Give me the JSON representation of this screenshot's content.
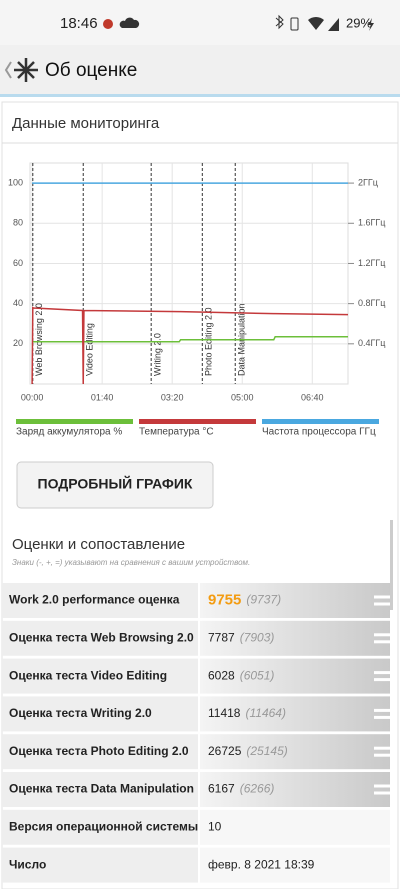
{
  "status_bar": {
    "time": "18:46",
    "battery": "29%"
  },
  "header": {
    "title": "Об оценке"
  },
  "monitoring": {
    "title": "Данные мониторинга"
  },
  "chart_data": {
    "type": "line",
    "x": [
      0,
      1,
      2,
      72,
      73,
      74,
      210,
      212,
      345,
      347,
      451
    ],
    "xlim": [
      -3,
      451
    ],
    "xticks": [
      {
        "value": 0,
        "label": "00:00"
      },
      {
        "value": 100,
        "label": "01:40"
      },
      {
        "value": 200,
        "label": "03:20"
      },
      {
        "value": 300,
        "label": "05:00"
      },
      {
        "value": 400,
        "label": "06:40"
      }
    ],
    "ylim": [
      0,
      110
    ],
    "yticks": [
      20,
      40,
      60,
      80,
      100
    ],
    "y2lim": [
      0,
      2.2
    ],
    "y2ticks": [
      {
        "value": 0.4,
        "label": "0.4ГГц"
      },
      {
        "value": 0.8,
        "label": "0.8ГГц"
      },
      {
        "value": 1.2,
        "label": "1.2ГГц"
      },
      {
        "value": 1.6,
        "label": "1.6ГГц"
      },
      {
        "value": 2,
        "label": "2ГГц"
      }
    ],
    "grid": true,
    "series": [
      {
        "name": "Заряд аккумулятора %",
        "color": "#6cbf3a",
        "values": [
          21,
          21,
          21,
          21,
          21,
          21,
          21,
          22,
          22,
          23.5,
          23.5
        ]
      },
      {
        "name": "Температура °C",
        "color": "#c4393b",
        "values": [
          0,
          38,
          37.8,
          36.6,
          0,
          36.6,
          36,
          36,
          35,
          35,
          34.5
        ]
      },
      {
        "name": "Частота процессора ГГц",
        "color": "#4aa8e0",
        "axis": "y2",
        "values": [
          2,
          2,
          2,
          2,
          2,
          2,
          2,
          2,
          2,
          2,
          2
        ]
      }
    ],
    "events": [
      {
        "x": 1,
        "label": "Web Browsing 2.0"
      },
      {
        "x": 73,
        "label": "Video Editing"
      },
      {
        "x": 170,
        "label": "Writing 2.0"
      },
      {
        "x": 243,
        "label": "Photo Editing 2.0"
      },
      {
        "x": 290,
        "label": "Data Manipulation"
      }
    ]
  },
  "button": "ПОДРОБНЫЙ ГРАФИК",
  "scores": {
    "title": "Оценки и сопоставление",
    "note": "Знаки (-, +, =) указывают на сравнения с вашим устройством.",
    "rows": [
      {
        "label": "Work 2.0 performance оценка",
        "score": 9755,
        "reference": "(9737)"
      },
      {
        "label": "Оценка теста Web Browsing 2.0",
        "score": 7787,
        "reference": "(7903)"
      },
      {
        "label": "Оценка теста Video Editing",
        "score": 6028,
        "reference": "(6051)"
      },
      {
        "label": "Оценка теста Writing 2.0",
        "score": 11418,
        "reference": "(11464)"
      },
      {
        "label": "Оценка теста Photo Editing 2.0",
        "score": 26725,
        "reference": "(25145)"
      },
      {
        "label": "Оценка теста Data Manipulation",
        "score": 6167,
        "reference": "(6266)"
      },
      {
        "label": "Версия операционной системы",
        "score": 10
      },
      {
        "label": "Число",
        "score": "февр. 8 2021 18:39"
      }
    ]
  }
}
